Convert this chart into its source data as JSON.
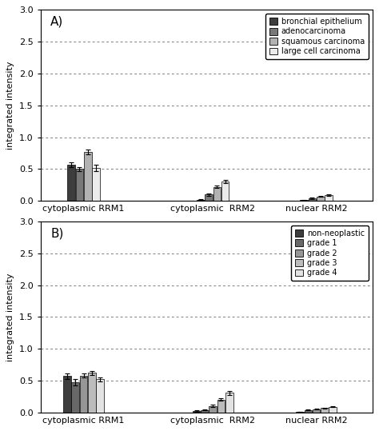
{
  "panel_A": {
    "label": "A)",
    "groups": [
      "cytoplasmic RRM1",
      "cytoplasmic  RRM2",
      "nuclear RRM2"
    ],
    "series_labels": [
      "bronchial epithelium",
      "adenocarcinoma",
      "squamous carcinoma",
      "large cell carcinoma"
    ],
    "colors": [
      "#3d3d3d",
      "#787878",
      "#b2b2b2",
      "#ebebeb"
    ],
    "edge_colors": [
      "#000000",
      "#000000",
      "#000000",
      "#000000"
    ],
    "values": [
      [
        0.57,
        0.5,
        0.77,
        0.52
      ],
      [
        0.02,
        0.1,
        0.22,
        0.3
      ],
      [
        0.01,
        0.04,
        0.07,
        0.09
      ]
    ],
    "errors": [
      [
        0.04,
        0.03,
        0.04,
        0.05
      ],
      [
        0.01,
        0.02,
        0.02,
        0.025
      ],
      [
        0.005,
        0.008,
        0.008,
        0.008
      ]
    ]
  },
  "panel_B": {
    "label": "B)",
    "groups": [
      "cytoplasmic RRM1",
      "cytoplasmic  RRM2",
      "nuclear RRM2"
    ],
    "series_labels": [
      "non-neoplastic",
      "grade 1",
      "grade 2",
      "grade 3",
      "grade 4"
    ],
    "colors": [
      "#3d3d3d",
      "#686868",
      "#969696",
      "#bcbcbc",
      "#e3e3e3"
    ],
    "edge_colors": [
      "#000000",
      "#000000",
      "#000000",
      "#000000",
      "#000000"
    ],
    "values": [
      [
        0.57,
        0.48,
        0.58,
        0.62,
        0.52
      ],
      [
        0.02,
        0.04,
        0.1,
        0.2,
        0.31
      ],
      [
        0.01,
        0.04,
        0.05,
        0.07,
        0.09
      ]
    ],
    "errors": [
      [
        0.04,
        0.05,
        0.03,
        0.03,
        0.03
      ],
      [
        0.01,
        0.01,
        0.02,
        0.02,
        0.03
      ],
      [
        0.005,
        0.008,
        0.008,
        0.008,
        0.008
      ]
    ]
  },
  "ylabel": "integrated intensity",
  "ylim": [
    0.0,
    3.0
  ],
  "yticks": [
    0.0,
    0.5,
    1.0,
    1.5,
    2.0,
    2.5,
    3.0
  ],
  "bar_width": 0.09,
  "group_centers": [
    0.5,
    2.0,
    3.2
  ],
  "xlim": [
    0.0,
    3.85
  ],
  "figsize": [
    4.74,
    5.39
  ],
  "dpi": 100
}
